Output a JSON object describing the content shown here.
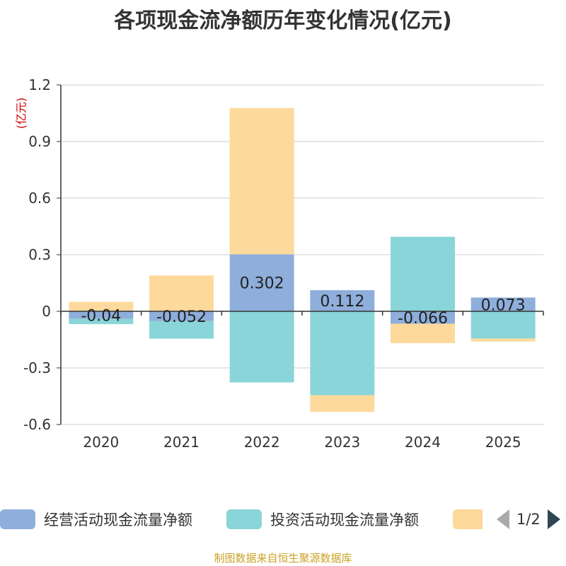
{
  "title": "各项现金流净额历年变化情况(亿元)",
  "unit_label": "(亿元)",
  "source": "制图数据来自恒生聚源数据库",
  "legend": {
    "items": [
      {
        "label": "经营活动现金流量净额",
        "color": "#8eaedb"
      },
      {
        "label": "投资活动现金流量净额",
        "color": "#89d5d9"
      },
      {
        "label": "",
        "color": "#fdd99b"
      }
    ],
    "page": "1/2"
  },
  "chart_data": {
    "type": "bar",
    "stacked": true,
    "categories": [
      "2020",
      "2021",
      "2022",
      "2023",
      "2024",
      "2025"
    ],
    "ylim": [
      -0.6,
      1.2
    ],
    "yticks": [
      "-0.6",
      "-0.3",
      "0",
      "0.3",
      "0.6",
      "0.9",
      "1.2"
    ],
    "grid": true,
    "legend_position": "bottom",
    "series": [
      {
        "name": "经营活动现金流量净额",
        "color": "#8eaedb",
        "values": [
          -0.04,
          -0.052,
          0.302,
          0.112,
          -0.066,
          0.073
        ],
        "labels": [
          "-0.04",
          "-0.052",
          "0.302",
          "0.112",
          "-0.066",
          "0.073"
        ]
      },
      {
        "name": "投资活动现金流量净额",
        "color": "#89d5d9",
        "values": [
          -0.028,
          -0.093,
          -0.377,
          -0.445,
          0.395,
          -0.144
        ]
      },
      {
        "color": "#fdd99b",
        "values": [
          0.05,
          0.19,
          0.775,
          -0.088,
          -0.103,
          -0.016
        ]
      }
    ]
  }
}
